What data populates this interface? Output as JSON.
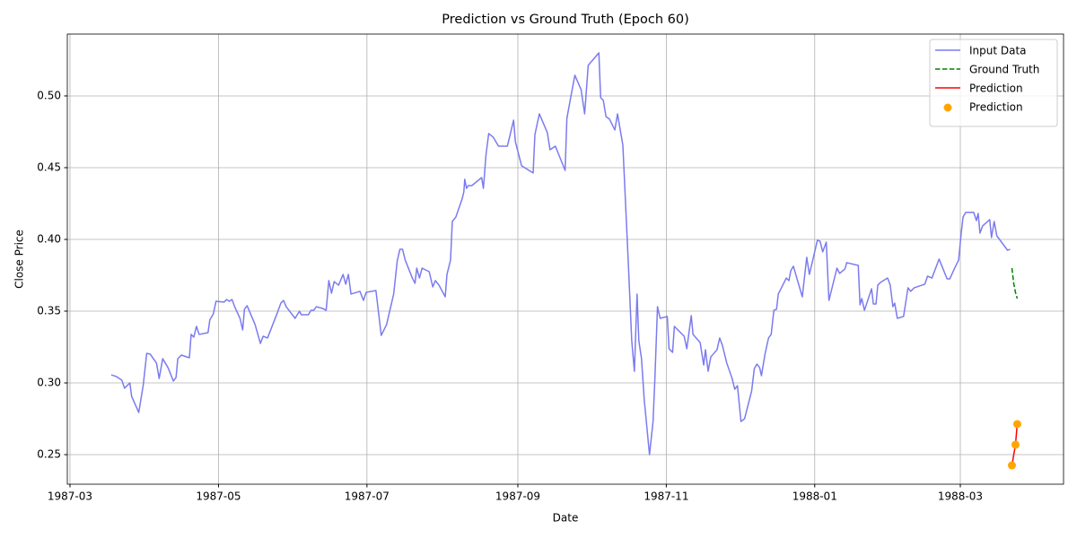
{
  "chart_data": {
    "type": "line",
    "title": "Prediction vs Ground Truth (Epoch 60)",
    "x_label": "Date",
    "y_label": "Close Price",
    "xlim": [
      1987.1586,
      1988.2801
    ],
    "ylim": [
      0.2294,
      0.5431
    ],
    "xticks": [
      {
        "value": 1987.1616,
        "label": "1987-03"
      },
      {
        "value": 1987.3288,
        "label": "1987-05"
      },
      {
        "value": 1987.4959,
        "label": "1987-07"
      },
      {
        "value": 1987.6658,
        "label": "1987-09"
      },
      {
        "value": 1987.8329,
        "label": "1987-11"
      },
      {
        "value": 1988.0,
        "label": "1988-01"
      },
      {
        "value": 1988.1639,
        "label": "1988-03"
      }
    ],
    "yticks": [
      0.25,
      {
        "value": 0.3,
        "label": "0.30"
      },
      0.35,
      {
        "value": 0.4,
        "label": "0.40"
      },
      0.45,
      {
        "value": 0.5,
        "label": "0.50"
      }
    ],
    "grid": true,
    "legend": "upper right",
    "series": [
      {
        "name": "Input Data",
        "kind": "line",
        "dashed": false,
        "color": "#7b7bf0",
        "x": [
          1987.208,
          1987.214,
          1987.22,
          1987.223,
          1987.229,
          1987.231,
          1987.239,
          1987.244,
          1987.248,
          1987.252,
          1987.259,
          1987.262,
          1987.266,
          1987.272,
          1987.278,
          1987.281,
          1987.283,
          1987.287,
          1987.296,
          1987.298,
          1987.301,
          1987.304,
          1987.307,
          1987.317,
          1987.319,
          1987.323,
          1987.326,
          1987.335,
          1987.338,
          1987.341,
          1987.344,
          1987.347,
          1987.353,
          1987.356,
          1987.358,
          1987.361,
          1987.37,
          1987.376,
          1987.379,
          1987.384,
          1987.395,
          1987.399,
          1987.402,
          1987.405,
          1987.415,
          1987.42,
          1987.422,
          1987.43,
          1987.433,
          1987.436,
          1987.439,
          1987.446,
          1987.45,
          1987.453,
          1987.456,
          1987.459,
          1987.464,
          1987.469,
          1987.472,
          1987.475,
          1987.478,
          1987.488,
          1987.492,
          1987.495,
          1987.506,
          1987.512,
          1987.518,
          1987.526,
          1987.53,
          1987.533,
          1987.536,
          1987.539,
          1987.547,
          1987.55,
          1987.552,
          1987.555,
          1987.558,
          1987.566,
          1987.57,
          1987.573,
          1987.577,
          1987.584,
          1987.586,
          1987.59,
          1987.592,
          1987.596,
          1987.603,
          1987.605,
          1987.606,
          1987.608,
          1987.61,
          1987.614,
          1987.625,
          1987.627,
          1987.63,
          1987.633,
          1987.638,
          1987.644,
          1987.654,
          1987.661,
          1987.663,
          1987.67,
          1987.683,
          1987.685,
          1987.69,
          1987.699,
          1987.702,
          1987.708,
          1987.719,
          1987.721,
          1987.726,
          1987.73,
          1987.737,
          1987.741,
          1987.745,
          1987.757,
          1987.759,
          1987.762,
          1987.765,
          1987.769,
          1987.775,
          1987.778,
          1987.784,
          1987.79,
          1987.794,
          1987.797,
          1987.8,
          1987.802,
          1987.805,
          1987.808,
          1987.814,
          1987.818,
          1987.82,
          1987.823,
          1987.826,
          1987.834,
          1987.836,
          1987.84,
          1987.842,
          1987.853,
          1987.856,
          1987.861,
          1987.863,
          1987.871,
          1987.875,
          1987.877,
          1987.88,
          1987.883,
          1987.89,
          1987.893,
          1987.896,
          1987.901,
          1987.907,
          1987.91,
          1987.913,
          1987.917,
          1987.921,
          1987.929,
          1987.932,
          1987.935,
          1987.938,
          1987.94,
          1987.944,
          1987.948,
          1987.951,
          1987.954,
          1987.957,
          1987.959,
          1987.964,
          1987.968,
          1987.971,
          1987.973,
          1987.976,
          1987.986,
          1987.991,
          1987.994,
          1988.003,
          1988.006,
          1988.009,
          1988.013,
          1988.016,
          1988.025,
          1988.028,
          1988.034,
          1988.036,
          1988.049,
          1988.051,
          1988.053,
          1988.056,
          1988.064,
          1988.066,
          1988.069,
          1988.071,
          1988.074,
          1988.082,
          1988.085,
          1988.088,
          1988.09,
          1988.093,
          1988.1,
          1988.105,
          1988.108,
          1988.112,
          1988.124,
          1988.127,
          1988.132,
          1988.14,
          1988.149,
          1988.152,
          1988.158,
          1988.162,
          1988.165,
          1988.167,
          1988.17,
          1988.179,
          1988.182,
          1988.184,
          1988.186,
          1988.189,
          1988.197,
          1988.199,
          1988.202,
          1988.205,
          1988.217,
          1988.22
        ],
        "values": [
          0.3056,
          0.3044,
          0.3019,
          0.2963,
          0.3,
          0.2906,
          0.2794,
          0.2981,
          0.3206,
          0.32,
          0.3138,
          0.3031,
          0.3169,
          0.3106,
          0.3013,
          0.3038,
          0.3169,
          0.3194,
          0.3175,
          0.3338,
          0.3319,
          0.3394,
          0.3338,
          0.335,
          0.3438,
          0.3481,
          0.3569,
          0.3563,
          0.3581,
          0.3569,
          0.3581,
          0.3531,
          0.345,
          0.3369,
          0.3513,
          0.3538,
          0.3406,
          0.3275,
          0.3325,
          0.3313,
          0.3488,
          0.3556,
          0.3575,
          0.3531,
          0.345,
          0.35,
          0.3475,
          0.3475,
          0.3506,
          0.3506,
          0.3531,
          0.3519,
          0.3506,
          0.3713,
          0.3625,
          0.3706,
          0.3681,
          0.3756,
          0.3688,
          0.3756,
          0.3619,
          0.3638,
          0.3575,
          0.3631,
          0.3644,
          0.3331,
          0.3406,
          0.3619,
          0.385,
          0.3931,
          0.3931,
          0.3856,
          0.3731,
          0.3694,
          0.38,
          0.3731,
          0.38,
          0.3775,
          0.3669,
          0.3713,
          0.3681,
          0.36,
          0.3756,
          0.3856,
          0.4125,
          0.4156,
          0.4281,
          0.4331,
          0.4419,
          0.4356,
          0.4375,
          0.4375,
          0.4431,
          0.4356,
          0.4594,
          0.4738,
          0.4713,
          0.465,
          0.465,
          0.4831,
          0.4681,
          0.4513,
          0.4463,
          0.4731,
          0.4875,
          0.4744,
          0.4625,
          0.465,
          0.4481,
          0.4844,
          0.5013,
          0.5144,
          0.5044,
          0.4875,
          0.5213,
          0.53,
          0.4988,
          0.4969,
          0.4856,
          0.4838,
          0.4763,
          0.4875,
          0.4656,
          0.3856,
          0.3294,
          0.3081,
          0.3619,
          0.3294,
          0.3169,
          0.2888,
          0.25,
          0.2731,
          0.3019,
          0.3531,
          0.345,
          0.3463,
          0.3238,
          0.3213,
          0.3394,
          0.3325,
          0.3238,
          0.3469,
          0.3338,
          0.3281,
          0.3125,
          0.3231,
          0.3081,
          0.3181,
          0.3231,
          0.3313,
          0.3263,
          0.3138,
          0.3031,
          0.2956,
          0.2981,
          0.2731,
          0.275,
          0.2944,
          0.31,
          0.3131,
          0.3106,
          0.305,
          0.32,
          0.3313,
          0.3338,
          0.3506,
          0.3513,
          0.3619,
          0.3681,
          0.3731,
          0.3713,
          0.3781,
          0.3813,
          0.36,
          0.3875,
          0.3756,
          0.3994,
          0.3988,
          0.3913,
          0.3981,
          0.3575,
          0.38,
          0.3763,
          0.3794,
          0.3838,
          0.3819,
          0.3544,
          0.3588,
          0.3506,
          0.3656,
          0.355,
          0.355,
          0.3681,
          0.37,
          0.3731,
          0.3681,
          0.3531,
          0.3556,
          0.345,
          0.3463,
          0.3663,
          0.3638,
          0.3663,
          0.3688,
          0.3744,
          0.3731,
          0.3863,
          0.3725,
          0.3725,
          0.3806,
          0.3856,
          0.405,
          0.4156,
          0.4188,
          0.4188,
          0.4131,
          0.4181,
          0.4044,
          0.4094,
          0.4138,
          0.4013,
          0.4125,
          0.4025,
          0.3925,
          0.3931
        ]
      },
      {
        "name": "Ground Truth",
        "kind": "line",
        "dashed": true,
        "color": "#008000",
        "x": [
          1988.222,
          1988.224,
          1988.226,
          1988.228
        ],
        "values": [
          0.38,
          0.3694,
          0.3631,
          0.3588
        ]
      },
      {
        "name": "Prediction",
        "kind": "line",
        "dashed": false,
        "color": "#ff0000",
        "x": [
          1988.222,
          1988.226,
          1988.228
        ],
        "values": [
          0.2425,
          0.2569,
          0.2713
        ]
      },
      {
        "name": "Prediction",
        "kind": "scatter",
        "dashed": false,
        "color": "#ffa500",
        "x": [
          1988.222,
          1988.226,
          1988.228
        ],
        "values": [
          0.2425,
          0.2569,
          0.2713
        ]
      }
    ]
  }
}
